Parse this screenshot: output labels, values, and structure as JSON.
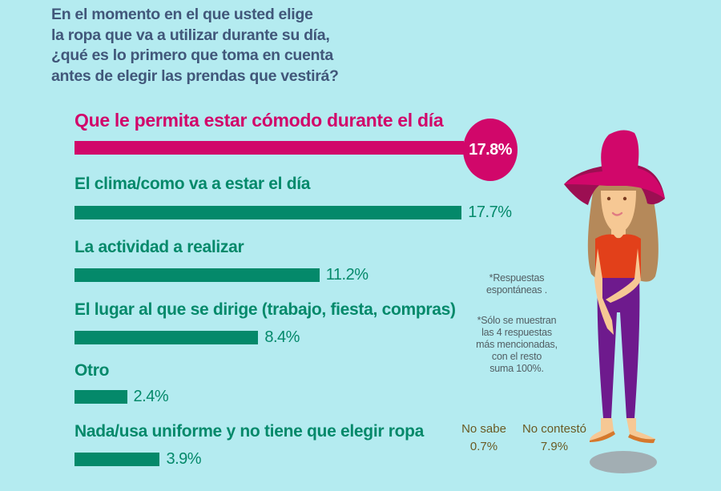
{
  "title_lines": [
    "En el momento en el que usted elige",
    "la ropa que va a utilizar durante su día,",
    "¿qué es lo primero que toma en cuenta",
    "antes de elegir las prendas que vestirá?"
  ],
  "colors": {
    "background": "#b4ebf0",
    "highlight": "#d1076a",
    "bar": "#04896a",
    "title": "#41577a"
  },
  "chart_data": {
    "type": "bar",
    "orientation": "horizontal",
    "title": "En el momento en el que usted elige la ropa que va a utilizar durante su día, ¿qué es lo primero que toma en cuenta antes de elegir las prendas que vestirá?",
    "categories": [
      "Que le permita estar cómodo durante el día",
      "El clima/como va a estar el día",
      "La actividad a realizar",
      "El lugar al que se dirige (trabajo, fiesta, compras)",
      "Otro",
      "Nada/usa uniforme y no tiene que elegir ropa"
    ],
    "values": [
      17.8,
      17.7,
      11.2,
      8.4,
      2.4,
      3.9
    ],
    "value_labels": [
      "17.8%",
      "17.7%",
      "11.2%",
      "8.4%",
      "2.4%",
      "3.9%"
    ],
    "highlighted_index": 0,
    "unit": "%",
    "xlim": [
      0,
      17.8
    ],
    "grid": false
  },
  "notes": {
    "note1": [
      "*Respuestas",
      "espontáneas ."
    ],
    "note2": [
      "*Sólo se muestran",
      "las 4 respuestas",
      "más mencionadas,",
      "con el resto",
      "suma 100%."
    ]
  },
  "extra_stats": [
    {
      "label": "No sabe",
      "value": "0.7%"
    },
    {
      "label": "No contestó",
      "value": "7.9%"
    }
  ],
  "illustration": {
    "icon": "woman-with-hat-illustration"
  }
}
